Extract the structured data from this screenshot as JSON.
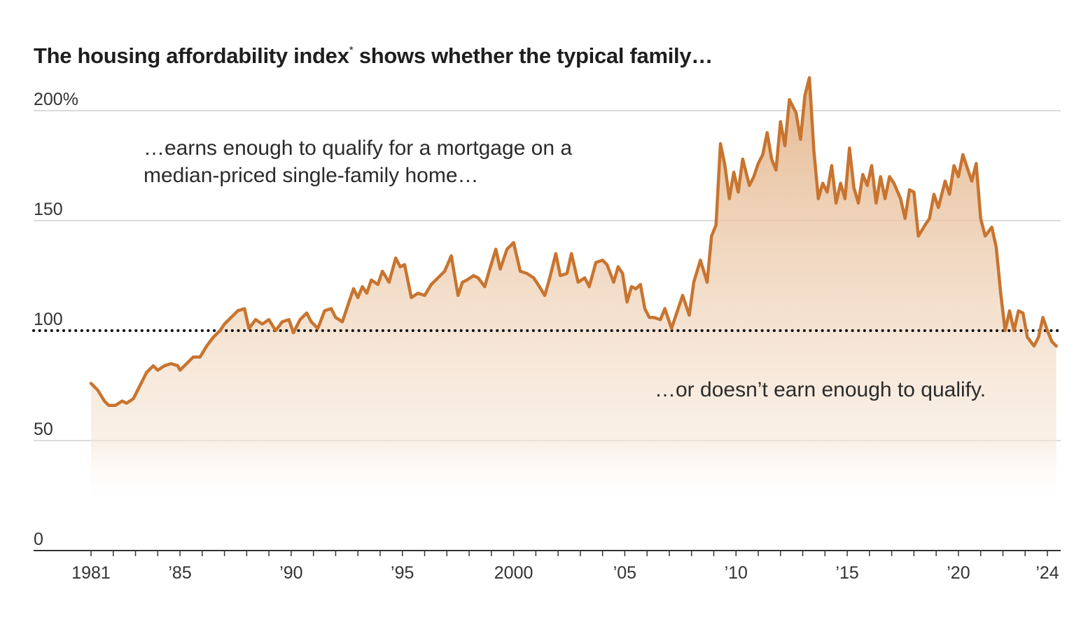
{
  "title": "The housing affordability index",
  "title_mark": "*",
  "title_rest": " shows whether the typical family…",
  "annotations": {
    "above_line1": "…earns enough to qualify for a mortgage on a",
    "above_line2": "median-priced single-family home…",
    "below": "…or doesn’t earn enough to qualify."
  },
  "colors": {
    "line": "#c8742f",
    "fill_top": "#e3b48a",
    "reference": "#111111",
    "grid": "#cfcfcf"
  },
  "chart_data": {
    "type": "area",
    "title": "The housing affordability index* shows whether the typical family…",
    "xlabel": "",
    "ylabel": "",
    "ylim": [
      0,
      215
    ],
    "xlim": [
      1981,
      2024.6
    ],
    "grid": true,
    "reference_line": 100,
    "y_ticks": [
      {
        "value": 200,
        "label": "200%"
      },
      {
        "value": 150,
        "label": "150"
      },
      {
        "value": 100,
        "label": "100"
      },
      {
        "value": 50,
        "label": "50"
      },
      {
        "value": 0,
        "label": "0"
      }
    ],
    "x_ticks": [
      {
        "value": 1981,
        "label": "1981"
      },
      {
        "value": 1985,
        "label": "’85"
      },
      {
        "value": 1990,
        "label": "’90"
      },
      {
        "value": 1995,
        "label": "’95"
      },
      {
        "value": 2000,
        "label": "2000"
      },
      {
        "value": 2005,
        "label": "’05"
      },
      {
        "value": 2010,
        "label": "’10"
      },
      {
        "value": 2015,
        "label": "’15"
      },
      {
        "value": 2020,
        "label": "’20"
      },
      {
        "value": 2024,
        "label": "’24"
      }
    ],
    "series": [
      {
        "values": [
          [
            1981.0,
            76
          ],
          [
            1981.3,
            73
          ],
          [
            1981.6,
            68
          ],
          [
            1981.8,
            66
          ],
          [
            1982.1,
            66
          ],
          [
            1982.4,
            68
          ],
          [
            1982.6,
            67
          ],
          [
            1982.9,
            69
          ],
          [
            1983.2,
            75
          ],
          [
            1983.5,
            81
          ],
          [
            1983.8,
            84
          ],
          [
            1984.0,
            82
          ],
          [
            1984.3,
            84
          ],
          [
            1984.6,
            85
          ],
          [
            1984.9,
            84
          ],
          [
            1985.0,
            82
          ],
          [
            1985.3,
            85
          ],
          [
            1985.6,
            88
          ],
          [
            1985.9,
            88
          ],
          [
            1986.2,
            93
          ],
          [
            1986.5,
            97
          ],
          [
            1986.8,
            100
          ],
          [
            1987.0,
            103
          ],
          [
            1987.3,
            106
          ],
          [
            1987.6,
            109
          ],
          [
            1987.9,
            110
          ],
          [
            1988.1,
            101
          ],
          [
            1988.4,
            105
          ],
          [
            1988.7,
            103
          ],
          [
            1989.0,
            105
          ],
          [
            1989.3,
            100
          ],
          [
            1989.6,
            104
          ],
          [
            1989.9,
            105
          ],
          [
            1990.1,
            99
          ],
          [
            1990.4,
            105
          ],
          [
            1990.7,
            108
          ],
          [
            1990.9,
            104
          ],
          [
            1991.2,
            101
          ],
          [
            1991.5,
            109
          ],
          [
            1991.8,
            110
          ],
          [
            1992.0,
            106
          ],
          [
            1992.3,
            104
          ],
          [
            1992.5,
            110
          ],
          [
            1992.8,
            119
          ],
          [
            1993.0,
            115
          ],
          [
            1993.2,
            120
          ],
          [
            1993.4,
            117
          ],
          [
            1993.6,
            123
          ],
          [
            1993.9,
            121
          ],
          [
            1994.1,
            127
          ],
          [
            1994.4,
            122
          ],
          [
            1994.7,
            133
          ],
          [
            1994.9,
            129
          ],
          [
            1995.1,
            130
          ],
          [
            1995.4,
            115
          ],
          [
            1995.7,
            117
          ],
          [
            1996.0,
            116
          ],
          [
            1996.3,
            121
          ],
          [
            1996.6,
            124
          ],
          [
            1996.9,
            127
          ],
          [
            1997.2,
            134
          ],
          [
            1997.5,
            116
          ],
          [
            1997.7,
            122
          ],
          [
            1997.9,
            123
          ],
          [
            1998.2,
            125
          ],
          [
            1998.4,
            124
          ],
          [
            1998.7,
            120
          ],
          [
            1998.9,
            127
          ],
          [
            1999.2,
            137
          ],
          [
            1999.4,
            128
          ],
          [
            1999.7,
            137
          ],
          [
            2000.0,
            140
          ],
          [
            2000.3,
            127
          ],
          [
            2000.6,
            126
          ],
          [
            2000.9,
            124
          ],
          [
            2001.1,
            121
          ],
          [
            2001.4,
            116
          ],
          [
            2001.6,
            123
          ],
          [
            2001.9,
            135
          ],
          [
            2002.1,
            125
          ],
          [
            2002.4,
            126
          ],
          [
            2002.6,
            135
          ],
          [
            2002.9,
            122
          ],
          [
            2003.2,
            124
          ],
          [
            2003.4,
            120
          ],
          [
            2003.7,
            131
          ],
          [
            2004.0,
            132
          ],
          [
            2004.2,
            130
          ],
          [
            2004.5,
            122
          ],
          [
            2004.7,
            129
          ],
          [
            2004.9,
            126
          ],
          [
            2005.1,
            113
          ],
          [
            2005.3,
            120
          ],
          [
            2005.5,
            119
          ],
          [
            2005.7,
            121
          ],
          [
            2005.9,
            110
          ],
          [
            2006.1,
            106
          ],
          [
            2006.3,
            106
          ],
          [
            2006.6,
            105
          ],
          [
            2006.8,
            110
          ],
          [
            2007.1,
            101
          ],
          [
            2007.3,
            107
          ],
          [
            2007.6,
            116
          ],
          [
            2007.9,
            107
          ],
          [
            2008.1,
            122
          ],
          [
            2008.4,
            132
          ],
          [
            2008.7,
            122
          ],
          [
            2008.9,
            143
          ],
          [
            2009.1,
            148
          ],
          [
            2009.3,
            185
          ],
          [
            2009.5,
            175
          ],
          [
            2009.7,
            160
          ],
          [
            2009.9,
            172
          ],
          [
            2010.1,
            163
          ],
          [
            2010.3,
            178
          ],
          [
            2010.6,
            166
          ],
          [
            2010.8,
            170
          ],
          [
            2011.0,
            176
          ],
          [
            2011.2,
            180
          ],
          [
            2011.4,
            190
          ],
          [
            2011.6,
            178
          ],
          [
            2011.8,
            173
          ],
          [
            2012.0,
            195
          ],
          [
            2012.2,
            184
          ],
          [
            2012.4,
            205
          ],
          [
            2012.7,
            199
          ],
          [
            2012.9,
            187
          ],
          [
            2013.1,
            207
          ],
          [
            2013.3,
            215
          ],
          [
            2013.5,
            182
          ],
          [
            2013.7,
            160
          ],
          [
            2013.9,
            167
          ],
          [
            2014.1,
            163
          ],
          [
            2014.3,
            175
          ],
          [
            2014.5,
            158
          ],
          [
            2014.7,
            167
          ],
          [
            2014.9,
            160
          ],
          [
            2015.1,
            183
          ],
          [
            2015.3,
            165
          ],
          [
            2015.5,
            158
          ],
          [
            2015.7,
            171
          ],
          [
            2015.9,
            166
          ],
          [
            2016.1,
            175
          ],
          [
            2016.3,
            158
          ],
          [
            2016.5,
            170
          ],
          [
            2016.7,
            160
          ],
          [
            2016.9,
            170
          ],
          [
            2017.1,
            167
          ],
          [
            2017.4,
            160
          ],
          [
            2017.6,
            151
          ],
          [
            2017.8,
            164
          ],
          [
            2018.0,
            163
          ],
          [
            2018.2,
            143
          ],
          [
            2018.5,
            148
          ],
          [
            2018.7,
            151
          ],
          [
            2018.9,
            162
          ],
          [
            2019.1,
            156
          ],
          [
            2019.4,
            168
          ],
          [
            2019.6,
            162
          ],
          [
            2019.8,
            175
          ],
          [
            2020.0,
            170
          ],
          [
            2020.2,
            180
          ],
          [
            2020.4,
            174
          ],
          [
            2020.6,
            168
          ],
          [
            2020.8,
            176
          ],
          [
            2021.0,
            151
          ],
          [
            2021.2,
            143
          ],
          [
            2021.5,
            147
          ],
          [
            2021.7,
            138
          ],
          [
            2021.9,
            117
          ],
          [
            2022.1,
            100
          ],
          [
            2022.3,
            109
          ],
          [
            2022.5,
            100
          ],
          [
            2022.7,
            109
          ],
          [
            2022.9,
            108
          ],
          [
            2023.1,
            97
          ],
          [
            2023.4,
            93
          ],
          [
            2023.6,
            97
          ],
          [
            2023.8,
            106
          ],
          [
            2024.0,
            100
          ],
          [
            2024.2,
            95
          ],
          [
            2024.4,
            93
          ]
        ]
      }
    ]
  }
}
